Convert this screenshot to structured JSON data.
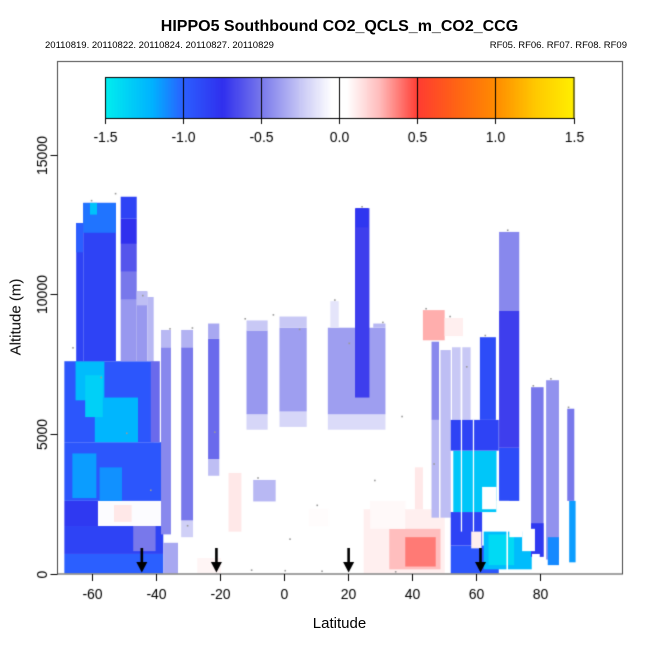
{
  "title": "HIPPO5 Southbound CO2_QCLS_m_CO2_CCG",
  "subtitle_left": "20110819. 20110822. 20110824. 20110827. 20110829",
  "subtitle_right": "RF05. RF06. RF07. RF08. RF09",
  "colors": {
    "background": "#ffffff",
    "box": "#444444",
    "axis": "#000000",
    "arrow": "#000000",
    "speck": "#9a9a9a"
  },
  "chart_data": {
    "type": "heatmap",
    "title": "HIPPO5 Southbound CO2_QCLS_m_CO2_CCG",
    "xlabel": "Latitude",
    "ylabel": "Altitude (m)",
    "xlim": [
      -70.8,
      105.7
    ],
    "ylim": [
      0,
      18350
    ],
    "x_ticks": [
      -60,
      -40,
      -20,
      0,
      20,
      40,
      60,
      80
    ],
    "y_ticks": [
      0,
      5000,
      10000,
      15000
    ],
    "grid": false,
    "legend_position": "top-inside",
    "colorbar": {
      "ticks": [
        -1.5,
        -1.0,
        -0.5,
        0.0,
        0.5,
        1.0,
        1.5
      ],
      "tick_labels": [
        "-1.5",
        "-1.0",
        "-0.5",
        "0.0",
        "0.5",
        "1.0",
        "1.5"
      ],
      "range": [
        -1.5,
        1.5
      ],
      "stops": [
        [
          -1.5,
          "#00EEEE"
        ],
        [
          -1.2,
          "#00B2FF"
        ],
        [
          -1.0,
          "#2B5FFF"
        ],
        [
          -0.75,
          "#3030EE"
        ],
        [
          -0.5,
          "#7878EB"
        ],
        [
          -0.25,
          "#C8C8F5"
        ],
        [
          -0.05,
          "#FFFFFF"
        ],
        [
          0.05,
          "#FFFFFF"
        ],
        [
          0.25,
          "#FFBEBE"
        ],
        [
          0.5,
          "#FF3C32"
        ],
        [
          0.75,
          "#FF6414"
        ],
        [
          1.0,
          "#FF8C00"
        ],
        [
          1.25,
          "#FFC800"
        ],
        [
          1.5,
          "#FFF000"
        ]
      ]
    },
    "arrows_lat": [
      -44.3,
      -21.0,
      20.3,
      61.5
    ],
    "cells_format": [
      "lat_min",
      "lat_max",
      "alt_min_m",
      "alt_max_m",
      "value_ppm_null_is_white"
    ],
    "cells": [
      [
        -68.5,
        -37.6,
        0,
        700,
        -1.0
      ],
      [
        -68.5,
        -37.6,
        700,
        1700,
        -0.85
      ],
      [
        -47,
        -40,
        800,
        1700,
        -0.5
      ],
      [
        -68.5,
        -58,
        1700,
        2600,
        -0.8
      ],
      [
        -58,
        -37.6,
        1700,
        2600,
        -0.06
      ],
      [
        -53,
        -47.5,
        1850,
        2450,
        0.12
      ],
      [
        -68.5,
        -37.6,
        2600,
        4700,
        -0.95
      ],
      [
        -66,
        -58.5,
        2700,
        4300,
        -1.15
      ],
      [
        -57.5,
        -50.5,
        2600,
        3800,
        -1.12
      ],
      [
        -68.5,
        -40.6,
        4700,
        7600,
        -0.95
      ],
      [
        -41.5,
        -38.7,
        4700,
        7600,
        -0.55
      ],
      [
        -65,
        -56,
        6200,
        7600,
        -1.25
      ],
      [
        -59,
        -45.5,
        4700,
        6300,
        -1.22
      ],
      [
        -62,
        -56.5,
        5600,
        7100,
        -1.35
      ],
      [
        -37.6,
        -33,
        0,
        1100,
        -0.35
      ],
      [
        -64.8,
        -62.6,
        7600,
        12550,
        -0.85
      ],
      [
        -64.8,
        -62.6,
        11500,
        12550,
        -1.0
      ],
      [
        -62.6,
        -52.4,
        7600,
        13270,
        -0.85
      ],
      [
        -62.6,
        -52.4,
        12200,
        13270,
        -1.05
      ],
      [
        -60.5,
        -58.3,
        12850,
        13270,
        -1.28
      ],
      [
        -50.9,
        -45.9,
        7600,
        9800,
        -0.4
      ],
      [
        -50.9,
        -45.9,
        9800,
        10800,
        -0.5
      ],
      [
        -50.9,
        -45.9,
        10800,
        11800,
        -0.62
      ],
      [
        -50.9,
        -45.9,
        11800,
        12700,
        -0.75
      ],
      [
        -50.9,
        -45.9,
        12700,
        13490,
        -0.85
      ],
      [
        -45.9,
        -42.6,
        7600,
        10100,
        -0.4
      ],
      [
        -45.9,
        -42.6,
        9600,
        10100,
        -0.28
      ],
      [
        -42.6,
        -40.6,
        7600,
        9900,
        -0.3
      ],
      [
        -38.3,
        -35.2,
        1400,
        8100,
        -0.45
      ],
      [
        -38.3,
        -35.2,
        8100,
        8720,
        -0.3
      ],
      [
        -32,
        -28.3,
        1300,
        1900,
        -0.22
      ],
      [
        -32,
        -28.3,
        1900,
        8100,
        -0.5
      ],
      [
        -32,
        -28.3,
        8100,
        8720,
        -0.32
      ],
      [
        -23.6,
        -20.1,
        3500,
        4100,
        -0.28
      ],
      [
        -23.6,
        -20.1,
        4100,
        8400,
        -0.55
      ],
      [
        -23.6,
        -20.1,
        8400,
        8950,
        -0.35
      ],
      [
        -17.2,
        -13.2,
        1500,
        3600,
        0.12
      ],
      [
        -27,
        -19.6,
        0,
        550,
        0.08
      ],
      [
        -9.5,
        -2.5,
        2580,
        3350,
        -0.3
      ],
      [
        -11.6,
        -5,
        5150,
        5700,
        -0.2
      ],
      [
        -11.6,
        -5,
        5700,
        8700,
        -0.4
      ],
      [
        -11.6,
        -5,
        8700,
        9060,
        -0.25
      ],
      [
        -1.3,
        7.2,
        5250,
        5800,
        -0.2
      ],
      [
        -1.3,
        7.2,
        5800,
        8800,
        -0.38
      ],
      [
        -1.3,
        7.2,
        8800,
        9200,
        -0.25
      ],
      [
        13.8,
        31.8,
        5150,
        5700,
        -0.18
      ],
      [
        13.8,
        31.8,
        5700,
        8800,
        -0.38
      ],
      [
        14.6,
        17.2,
        8800,
        9750,
        -0.15
      ],
      [
        22.3,
        26.8,
        6300,
        13080,
        -0.7
      ],
      [
        22.6,
        26.4,
        12400,
        13080,
        -0.78
      ],
      [
        28,
        31.8,
        8800,
        8950,
        -0.3
      ],
      [
        8,
        14,
        1700,
        2300,
        0.06
      ],
      [
        15,
        25,
        0,
        900,
        0.05
      ],
      [
        25,
        50.3,
        0,
        2300,
        0.1
      ],
      [
        33,
        49,
        150,
        1600,
        0.25
      ],
      [
        38,
        47.5,
        250,
        1300,
        0.38
      ],
      [
        27,
        38,
        1600,
        2600,
        0.07
      ],
      [
        41,
        43.5,
        2300,
        3800,
        0.12
      ],
      [
        43.5,
        50.3,
        8350,
        9430,
        0.28
      ],
      [
        50.3,
        56,
        8500,
        9150,
        0.1
      ],
      [
        46.2,
        48.6,
        2000,
        5500,
        -0.3
      ],
      [
        46.2,
        48.6,
        5500,
        8300,
        -0.45
      ],
      [
        48.6,
        49.0,
        2000,
        8300,
        null
      ],
      [
        49.0,
        52.2,
        2000,
        8000,
        -0.28
      ],
      [
        52.6,
        55.3,
        5500,
        8100,
        -0.25
      ],
      [
        55.8,
        58.4,
        5500,
        8100,
        -0.25
      ],
      [
        61.3,
        66.3,
        5500,
        8460,
        -0.9
      ],
      [
        67.3,
        73.6,
        9400,
        12230,
        -0.45
      ],
      [
        67.3,
        73.6,
        4500,
        9400,
        -0.7
      ],
      [
        67.3,
        73.6,
        2600,
        4500,
        -0.9
      ],
      [
        52.2,
        67.2,
        0,
        1000,
        -0.95
      ],
      [
        52.2,
        62,
        1000,
        2200,
        -0.85
      ],
      [
        58.6,
        61.8,
        900,
        1500,
        0.1
      ],
      [
        53,
        66.5,
        2200,
        4400,
        -1.3
      ],
      [
        52.2,
        67.2,
        4400,
        5500,
        -0.85
      ],
      [
        62.5,
        77.5,
        150,
        1500,
        -1.25
      ],
      [
        64,
        72,
        300,
        1400,
        -1.4
      ],
      [
        77.3,
        81.2,
        600,
        6670,
        -0.5
      ],
      [
        77.3,
        81.2,
        600,
        1800,
        -0.8
      ],
      [
        82,
        86,
        500,
        6920,
        -0.42
      ],
      [
        82.5,
        86,
        300,
        1300,
        -1.1
      ],
      [
        88.6,
        90.8,
        2600,
        5900,
        -0.5
      ],
      [
        89.2,
        91.2,
        400,
        2600,
        -1.15
      ],
      [
        55.35,
        55.75,
        1500,
        8100,
        null
      ],
      [
        59.1,
        59.5,
        1500,
        5500,
        null
      ],
      [
        62,
        66.5,
        2300,
        3100,
        null
      ],
      [
        66.5,
        70.5,
        1800,
        2600,
        null
      ],
      [
        70.5,
        74.5,
        1300,
        2100,
        null
      ],
      [
        74.5,
        78.5,
        800,
        1600,
        null
      ],
      [
        69.6,
        70.1,
        0,
        1800,
        null
      ],
      [
        77.6,
        80,
        0,
        700,
        null
      ]
    ],
    "specks": [
      [
        -60,
        13350
      ],
      [
        -52.5,
        13600
      ],
      [
        -44,
        9950
      ],
      [
        -65.8,
        8080
      ],
      [
        -57,
        7020
      ],
      [
        -49,
        5020
      ],
      [
        -41.5,
        2980
      ],
      [
        -30,
        1710
      ],
      [
        -21.5,
        5060
      ],
      [
        -12,
        9120
      ],
      [
        -3.2,
        9260
      ],
      [
        5,
        8740
      ],
      [
        16,
        9790
      ],
      [
        24.5,
        13130
      ],
      [
        20.5,
        8240
      ],
      [
        31,
        8990
      ],
      [
        37,
        5620
      ],
      [
        28.5,
        3330
      ],
      [
        2,
        1230
      ],
      [
        10.5,
        2440
      ],
      [
        44.5,
        9480
      ],
      [
        52,
        9200
      ],
      [
        57.2,
        7400
      ],
      [
        63,
        8520
      ],
      [
        70,
        12290
      ],
      [
        78,
        6720
      ],
      [
        83.5,
        6970
      ],
      [
        89,
        5950
      ],
      [
        -8,
        3420
      ],
      [
        47,
        3920
      ],
      [
        -35.5,
        8760
      ],
      [
        -28.5,
        8790
      ],
      [
        35,
        60
      ],
      [
        -10,
        120
      ],
      [
        0.5,
        100
      ],
      [
        12,
        80
      ]
    ]
  }
}
